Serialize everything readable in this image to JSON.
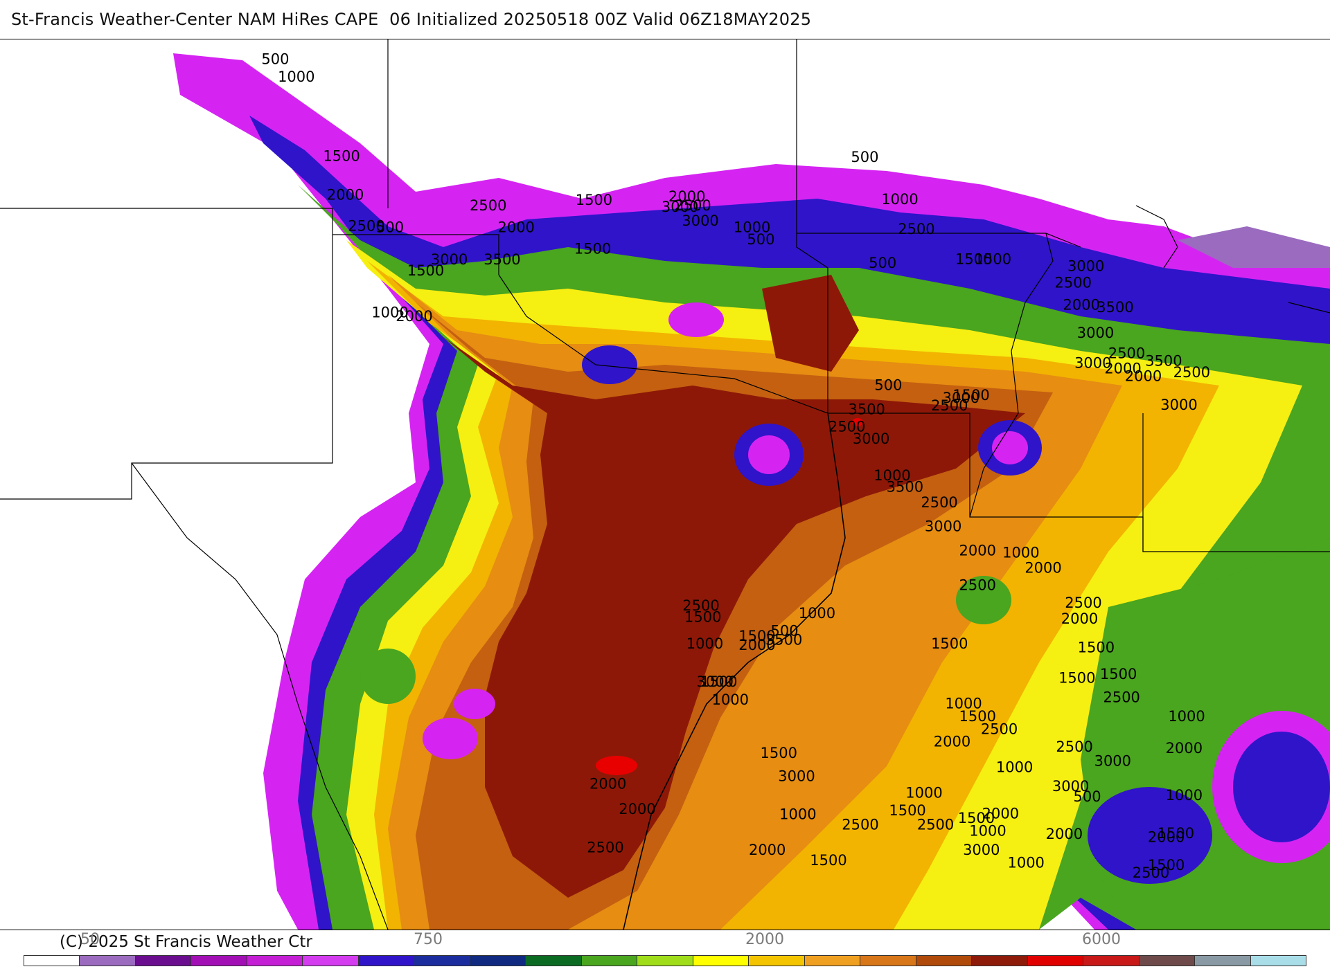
{
  "title": "St-Francis Weather-Center NAM HiRes CAPE  06 Initialized 20250518 00Z Valid 06Z18MAY2025",
  "copyright": "(C) 2025 St Francis Weather Ctr",
  "legend": {
    "tick_labels": [
      "50",
      "750",
      "2000",
      "6000"
    ],
    "colors": [
      "#ffffff",
      "#9b6bbf",
      "#6a0d8f",
      "#a10fb5",
      "#c51fd6",
      "#d43cf0",
      "#2f14c9",
      "#1b2d9e",
      "#0f2a80",
      "#0c6b22",
      "#4aa51f",
      "#9fdc1a",
      "#ffff00",
      "#f5c400",
      "#f0a020",
      "#d8761a",
      "#b04a0a",
      "#8e1a0a",
      "#e10000",
      "#c81818",
      "#6e4a4a",
      "#8a9aa4",
      "#a9dde8"
    ]
  },
  "map": {
    "fill_colors": {
      "background": "#ffffff",
      "magenta": "#d524f2",
      "lavender": "#9b6bbf",
      "blue": "#2f14c9",
      "green": "#4aa51f",
      "darkgreen": "#1f7a1a",
      "yellow": "#f6ef12",
      "gold": "#f2b400",
      "orange": "#e68d12",
      "darkorange": "#c46010",
      "maroon": "#8e1808",
      "red": "#e80000"
    },
    "contour_labels": [
      "500",
      "1000",
      "1500",
      "2000",
      "2500",
      "3000",
      "3500",
      "500",
      "1500",
      "1000",
      "2000",
      "1500",
      "2000",
      "2500",
      "3000",
      "1000",
      "500",
      "2500",
      "3000",
      "2000",
      "1500",
      "500",
      "1000",
      "2500",
      "500",
      "1500",
      "1500",
      "3000",
      "2500",
      "2000",
      "3500",
      "3000",
      "2500",
      "3000",
      "2000",
      "2000",
      "3500",
      "3000",
      "2500",
      "1500",
      "3000",
      "2500",
      "3500",
      "2500",
      "3000",
      "500",
      "1000",
      "3500",
      "2500",
      "3000",
      "2000",
      "2500",
      "1000",
      "2000",
      "2500",
      "2000",
      "1500",
      "1500",
      "2500",
      "2000",
      "1000",
      "2000",
      "1500",
      "2500",
      "1500",
      "1000",
      "1500",
      "1000",
      "1500",
      "2000",
      "1000",
      "1500",
      "2500",
      "3000",
      "2000",
      "1000",
      "1500",
      "2500",
      "3000",
      "2000",
      "1500",
      "1000",
      "1000",
      "500",
      "3000",
      "2500",
      "3500",
      "3000",
      "2000",
      "1500",
      "1000",
      "1500",
      "500",
      "1000",
      "2000",
      "2500",
      "1500",
      "1000",
      "3000",
      "2000",
      "2000",
      "2500",
      "1500",
      "1000",
      "1500",
      "2500"
    ]
  }
}
